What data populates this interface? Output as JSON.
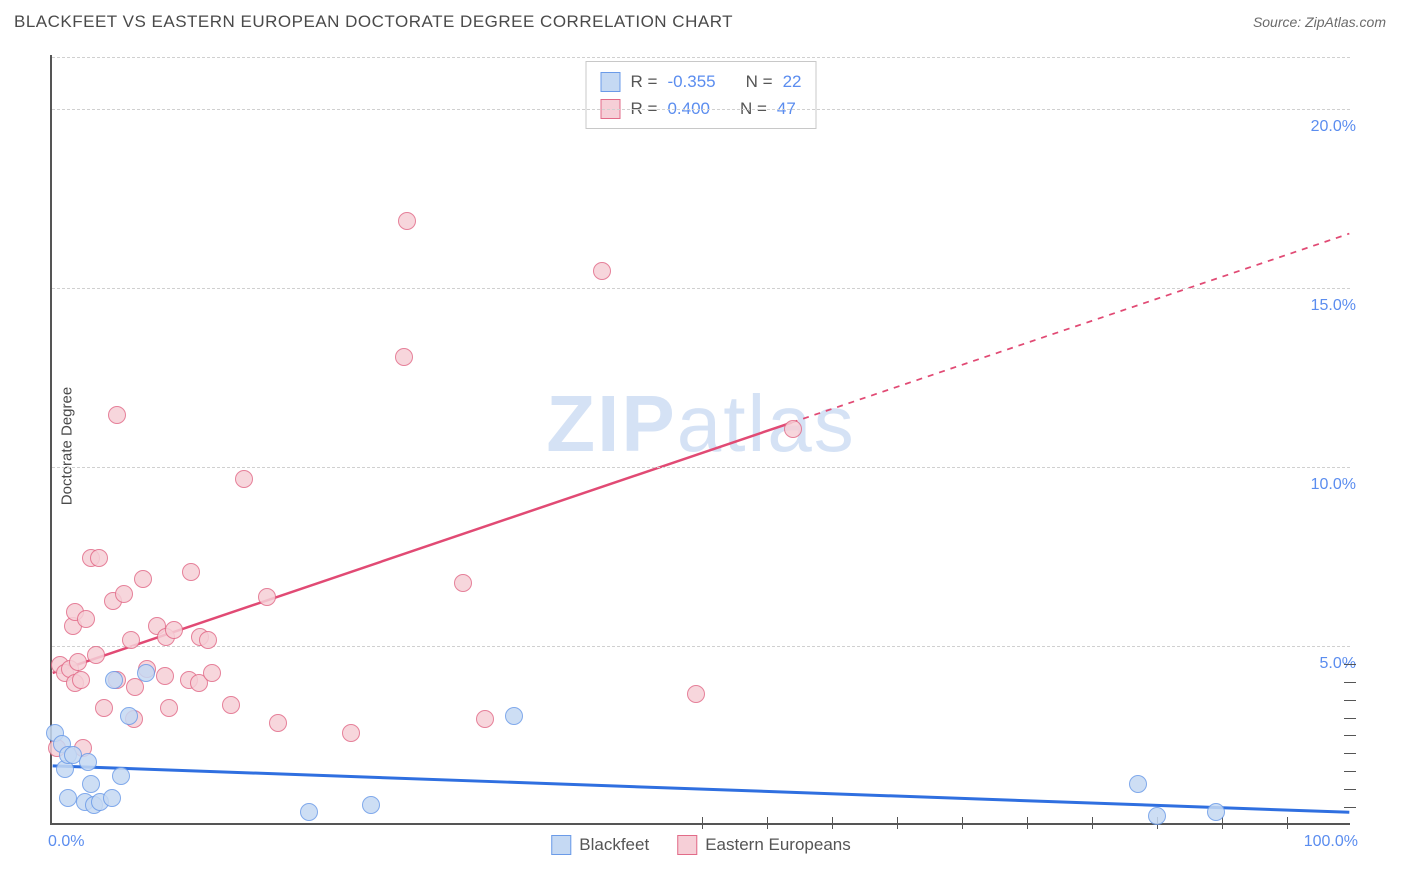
{
  "header": {
    "title": "BLACKFEET VS EASTERN EUROPEAN DOCTORATE DEGREE CORRELATION CHART",
    "source": "Source: ZipAtlas.com"
  },
  "chart": {
    "type": "scatter",
    "watermark": "ZIPatlas",
    "ylabel": "Doctorate Degree",
    "xlim": [
      0,
      100
    ],
    "ylim": [
      0,
      21.5
    ],
    "xticks_labels": [
      "0.0%",
      "100.0%"
    ],
    "ytick_values": [
      5.0,
      10.0,
      15.0,
      20.0
    ],
    "ytick_labels": [
      "5.0%",
      "10.0%",
      "15.0%",
      "20.0%"
    ],
    "xtick_marks": [
      50,
      55,
      60,
      65,
      70,
      75,
      80,
      85,
      90,
      95
    ],
    "ytick_marks_inner": [
      0.5,
      1.0,
      1.5,
      2.0,
      2.5,
      3.0,
      3.5,
      4.0,
      4.5
    ],
    "grid_color": "#d0d0d0",
    "background_color": "#ffffff",
    "marker_radius": 9,
    "marker_stroke_width": 1.5,
    "series": [
      {
        "name": "Blackfeet",
        "color_fill": "#c5d9f3",
        "color_stroke": "#6b9be8",
        "R": "-0.355",
        "N": "22",
        "trend": {
          "x1": 0,
          "y1": 1.6,
          "x2": 100,
          "y2": 0.3,
          "color": "#2f6fe0",
          "width": 3,
          "dash_after_x": 100
        },
        "points": [
          [
            0.2,
            2.5
          ],
          [
            0.8,
            2.2
          ],
          [
            1.0,
            1.5
          ],
          [
            1.2,
            0.7
          ],
          [
            1.2,
            1.9
          ],
          [
            1.6,
            1.9
          ],
          [
            2.5,
            0.6
          ],
          [
            2.8,
            1.7
          ],
          [
            3.0,
            1.1
          ],
          [
            3.2,
            0.5
          ],
          [
            3.7,
            0.6
          ],
          [
            4.6,
            0.7
          ],
          [
            4.8,
            4.0
          ],
          [
            5.3,
            1.3
          ],
          [
            5.9,
            3.0
          ],
          [
            7.2,
            4.2
          ],
          [
            19.8,
            0.3
          ],
          [
            24.5,
            0.5
          ],
          [
            35.5,
            3.0
          ],
          [
            83.5,
            1.1
          ],
          [
            85.0,
            0.2
          ],
          [
            89.5,
            0.3
          ]
        ]
      },
      {
        "name": "Eastern Europeans",
        "color_fill": "#f6cfd7",
        "color_stroke": "#e26b88",
        "R": "0.400",
        "N": "47",
        "trend": {
          "x1": 0,
          "y1": 4.2,
          "x2": 100,
          "y2": 16.5,
          "color": "#e14a74",
          "width": 2.5,
          "dash_after_x": 57
        },
        "points": [
          [
            0.4,
            2.1
          ],
          [
            0.6,
            4.4
          ],
          [
            1.0,
            4.2
          ],
          [
            1.4,
            4.3
          ],
          [
            1.6,
            5.5
          ],
          [
            1.8,
            3.9
          ],
          [
            1.8,
            5.9
          ],
          [
            2.0,
            4.5
          ],
          [
            2.2,
            4.0
          ],
          [
            2.4,
            2.1
          ],
          [
            2.6,
            5.7
          ],
          [
            3.0,
            7.4
          ],
          [
            3.4,
            4.7
          ],
          [
            3.6,
            7.4
          ],
          [
            4.0,
            3.2
          ],
          [
            4.7,
            6.2
          ],
          [
            5.0,
            4.0
          ],
          [
            5.0,
            11.4
          ],
          [
            5.5,
            6.4
          ],
          [
            6.1,
            5.1
          ],
          [
            6.3,
            2.9
          ],
          [
            6.4,
            3.8
          ],
          [
            7.0,
            6.8
          ],
          [
            7.3,
            4.3
          ],
          [
            8.1,
            5.5
          ],
          [
            8.7,
            4.1
          ],
          [
            8.8,
            5.2
          ],
          [
            9.0,
            3.2
          ],
          [
            9.4,
            5.4
          ],
          [
            10.5,
            4.0
          ],
          [
            10.7,
            7.0
          ],
          [
            11.3,
            3.9
          ],
          [
            11.4,
            5.2
          ],
          [
            12.0,
            5.1
          ],
          [
            12.3,
            4.2
          ],
          [
            13.8,
            3.3
          ],
          [
            14.8,
            9.6
          ],
          [
            16.5,
            6.3
          ],
          [
            17.4,
            2.8
          ],
          [
            23.0,
            2.5
          ],
          [
            27.1,
            13.0
          ],
          [
            27.3,
            16.8
          ],
          [
            31.6,
            6.7
          ],
          [
            33.3,
            2.9
          ],
          [
            42.3,
            15.4
          ],
          [
            49.5,
            3.6
          ],
          [
            57.0,
            11.0
          ]
        ]
      }
    ],
    "stats_box": {
      "row1": {
        "R_label": "R =",
        "N_label": "N ="
      },
      "row2": {
        "R_label": "R =",
        "N_label": "N ="
      }
    },
    "legend_bottom": [
      "Blackfeet",
      "Eastern Europeans"
    ]
  }
}
